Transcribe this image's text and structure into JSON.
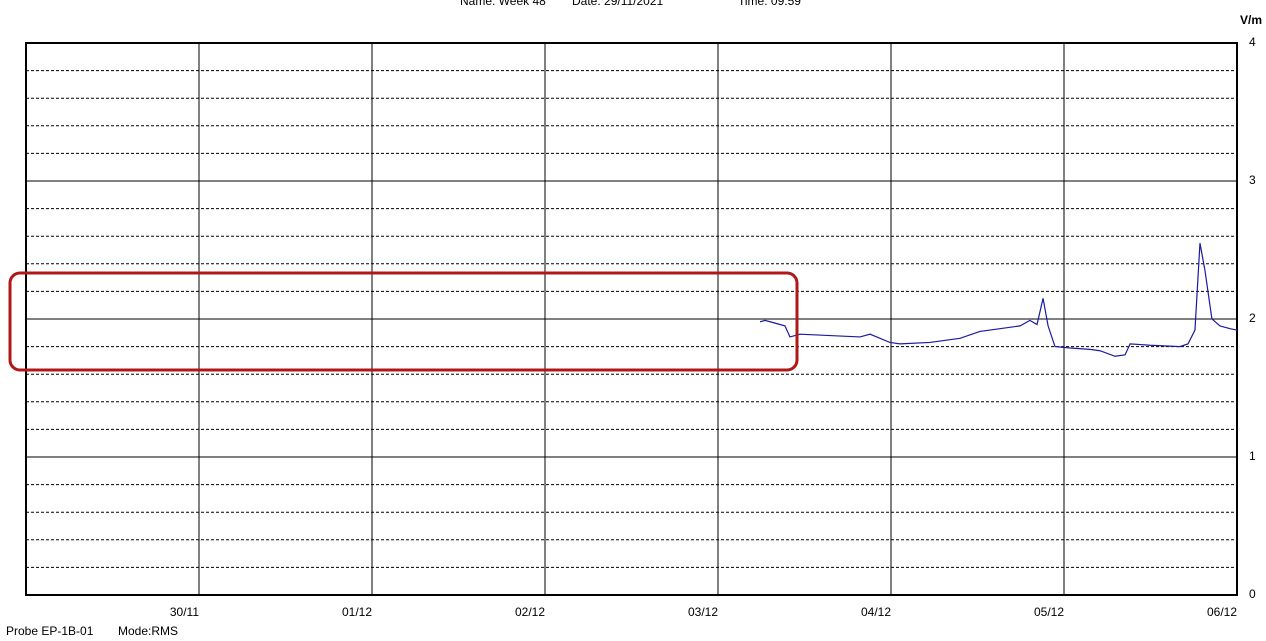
{
  "chart_data": {
    "type": "line",
    "header": [
      "Name: Week 48",
      "Date: 29/11/2021",
      "Time: 09:59"
    ],
    "y_unit": "V/m",
    "footer": [
      "Probe EP-1B-01",
      "Mode:RMS"
    ],
    "xlim": [
      0,
      7
    ],
    "xticks": [
      {
        "value": 1,
        "label": "30/11"
      },
      {
        "value": 2,
        "label": "01/12"
      },
      {
        "value": 3,
        "label": "02/12"
      },
      {
        "value": 4,
        "label": "03/12"
      },
      {
        "value": 5,
        "label": "04/12"
      },
      {
        "value": 6,
        "label": "05/12"
      },
      {
        "value": 7,
        "label": "06/12"
      }
    ],
    "ylim": [
      0,
      4
    ],
    "yticks": [
      0,
      1,
      2,
      3,
      4
    ],
    "minor_yticks": [
      0.2,
      0.4,
      0.6,
      0.8,
      1.2,
      1.4,
      1.6,
      1.8,
      2.2,
      2.4,
      2.6,
      2.8,
      3.2,
      3.4,
      3.6,
      3.8
    ],
    "grid": true,
    "series": [
      {
        "color": "#1a1aa0",
        "x": [
          4.243,
          4.272,
          4.33,
          4.387,
          4.416,
          4.474,
          4.647,
          4.821,
          4.879,
          4.994,
          5.052,
          5.225,
          5.399,
          5.514,
          5.63,
          5.746,
          5.803,
          5.844,
          5.879,
          5.908,
          5.948,
          6.035,
          6.15,
          6.208,
          6.295,
          6.353,
          6.382,
          6.497,
          6.671,
          6.717,
          6.757,
          6.786,
          6.815,
          6.855,
          6.902,
          6.96,
          7.0
        ],
        "values": [
          1.98,
          1.99,
          1.97,
          1.95,
          1.87,
          1.89,
          1.88,
          1.87,
          1.89,
          1.83,
          1.82,
          1.83,
          1.86,
          1.91,
          1.93,
          1.95,
          1.99,
          1.96,
          2.15,
          1.95,
          1.8,
          1.79,
          1.78,
          1.77,
          1.73,
          1.74,
          1.82,
          1.81,
          1.8,
          1.82,
          1.92,
          2.55,
          2.35,
          2.0,
          1.95,
          1.93,
          1.92
        ]
      }
    ]
  }
}
